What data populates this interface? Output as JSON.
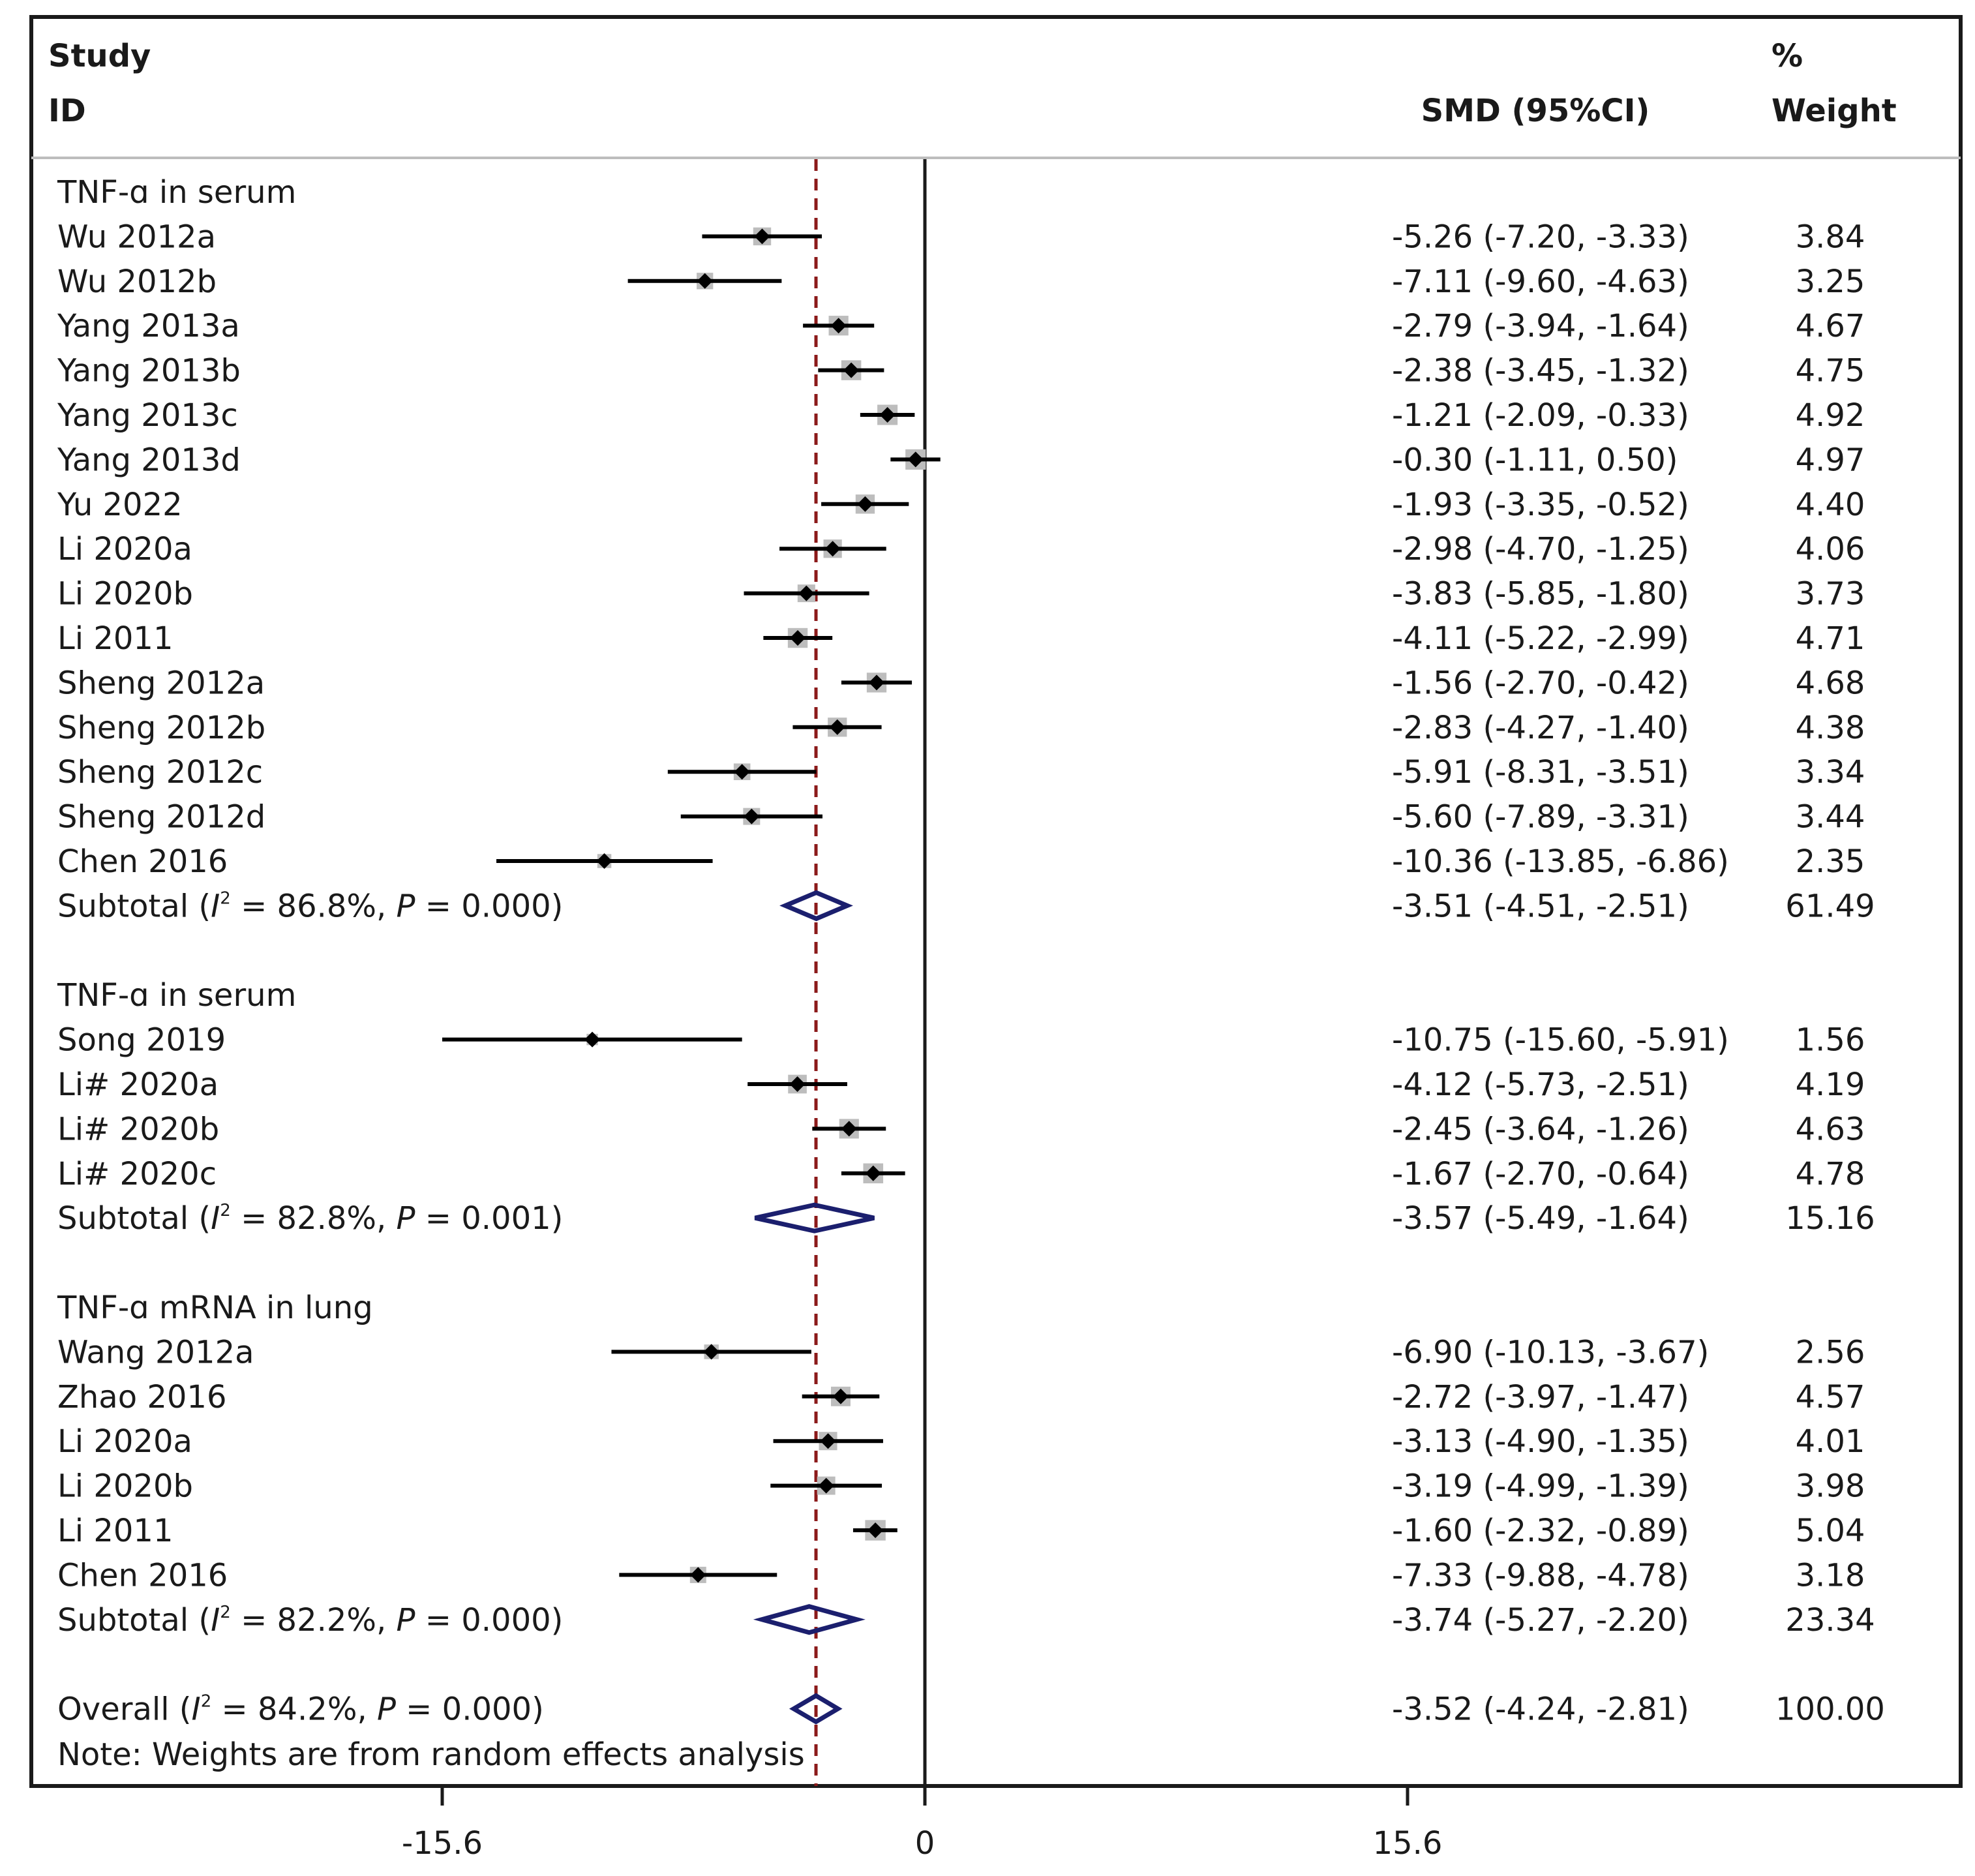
{
  "colors": {
    "box": "#bdbdbd",
    "point": "#000000",
    "diamond": "#1b1f6e",
    "overall_line": "#8b1a1a",
    "frame": "#1a1a1a"
  },
  "header": {
    "study": "Study",
    "id": "ID",
    "effect": "SMD (95%CI)",
    "pct": "%",
    "weight": "Weight"
  },
  "footnote": "Note: Weights are from random effects analysis",
  "chart_data": {
    "type": "forest",
    "x_ticks": [
      "-15.6",
      "0",
      "15.6"
    ],
    "xlim": [
      -28.8,
      33.2
    ],
    "null_line": 0,
    "overall_line": -3.52,
    "rows": [
      {
        "kind": "group",
        "label": "TNF-ɑ in serum"
      },
      {
        "kind": "study",
        "label": "Wu 2012a",
        "est": -5.26,
        "lo": -7.2,
        "hi": -3.33,
        "ci_text": "-5.26 (-7.20, -3.33)",
        "weight": 3.84,
        "weight_text": "3.84"
      },
      {
        "kind": "study",
        "label": "Wu 2012b",
        "est": -7.11,
        "lo": -9.6,
        "hi": -4.63,
        "ci_text": "-7.11 (-9.60, -4.63)",
        "weight": 3.25,
        "weight_text": "3.25"
      },
      {
        "kind": "study",
        "label": "Yang 2013a",
        "est": -2.79,
        "lo": -3.94,
        "hi": -1.64,
        "ci_text": "-2.79 (-3.94, -1.64)",
        "weight": 4.67,
        "weight_text": "4.67"
      },
      {
        "kind": "study",
        "label": "Yang 2013b",
        "est": -2.38,
        "lo": -3.45,
        "hi": -1.32,
        "ci_text": "-2.38 (-3.45, -1.32)",
        "weight": 4.75,
        "weight_text": "4.75"
      },
      {
        "kind": "study",
        "label": "Yang 2013c",
        "est": -1.21,
        "lo": -2.09,
        "hi": -0.33,
        "ci_text": "-1.21 (-2.09, -0.33)",
        "weight": 4.92,
        "weight_text": "4.92"
      },
      {
        "kind": "study",
        "label": "Yang 2013d",
        "est": -0.3,
        "lo": -1.11,
        "hi": 0.5,
        "ci_text": "-0.30 (-1.11, 0.50)",
        "weight": 4.97,
        "weight_text": "4.97"
      },
      {
        "kind": "study",
        "label": "Yu 2022",
        "est": -1.93,
        "lo": -3.35,
        "hi": -0.52,
        "ci_text": "-1.93 (-3.35, -0.52)",
        "weight": 4.4,
        "weight_text": "4.40"
      },
      {
        "kind": "study",
        "label": "Li 2020a",
        "est": -2.98,
        "lo": -4.7,
        "hi": -1.25,
        "ci_text": "-2.98 (-4.70, -1.25)",
        "weight": 4.06,
        "weight_text": "4.06"
      },
      {
        "kind": "study",
        "label": "Li 2020b",
        "est": -3.83,
        "lo": -5.85,
        "hi": -1.8,
        "ci_text": "-3.83 (-5.85, -1.80)",
        "weight": 3.73,
        "weight_text": "3.73"
      },
      {
        "kind": "study",
        "label": "Li 2011",
        "est": -4.11,
        "lo": -5.22,
        "hi": -2.99,
        "ci_text": "-4.11 (-5.22, -2.99)",
        "weight": 4.71,
        "weight_text": "4.71"
      },
      {
        "kind": "study",
        "label": "Sheng 2012a",
        "est": -1.56,
        "lo": -2.7,
        "hi": -0.42,
        "ci_text": "-1.56 (-2.70, -0.42)",
        "weight": 4.68,
        "weight_text": "4.68"
      },
      {
        "kind": "study",
        "label": "Sheng 2012b",
        "est": -2.83,
        "lo": -4.27,
        "hi": -1.4,
        "ci_text": "-2.83 (-4.27, -1.40)",
        "weight": 4.38,
        "weight_text": "4.38"
      },
      {
        "kind": "study",
        "label": "Sheng 2012c",
        "est": -5.91,
        "lo": -8.31,
        "hi": -3.51,
        "ci_text": "-5.91 (-8.31, -3.51)",
        "weight": 3.34,
        "weight_text": "3.34"
      },
      {
        "kind": "study",
        "label": "Sheng 2012d",
        "est": -5.6,
        "lo": -7.89,
        "hi": -3.31,
        "ci_text": "-5.60 (-7.89, -3.31)",
        "weight": 3.44,
        "weight_text": "3.44"
      },
      {
        "kind": "study",
        "label": "Chen 2016",
        "est": -10.36,
        "lo": -13.85,
        "hi": -6.86,
        "ci_text": "-10.36 (-13.85, -6.86)",
        "weight": 2.35,
        "weight_text": "2.35"
      },
      {
        "kind": "subtotal",
        "prefix": "Subtotal (",
        "i2sym": "I",
        "i2sup": "2",
        "mid": " = 86.8%, ",
        "psym": "P",
        "suffix": " = 0.000)",
        "est": -3.51,
        "lo": -4.51,
        "hi": -2.51,
        "ci_text": "-3.51 (-4.51, -2.51)",
        "weight_text": "61.49"
      },
      {
        "kind": "blank"
      },
      {
        "kind": "group",
        "label": "TNF-ɑ in serum"
      },
      {
        "kind": "study",
        "label": "Song 2019",
        "est": -10.75,
        "lo": -15.6,
        "hi": -5.91,
        "ci_text": "-10.75 (-15.60, -5.91)",
        "weight": 1.56,
        "weight_text": "1.56"
      },
      {
        "kind": "study",
        "label": "Li# 2020a",
        "est": -4.12,
        "lo": -5.73,
        "hi": -2.51,
        "ci_text": "-4.12 (-5.73, -2.51)",
        "weight": 4.19,
        "weight_text": "4.19"
      },
      {
        "kind": "study",
        "label": "Li# 2020b",
        "est": -2.45,
        "lo": -3.64,
        "hi": -1.26,
        "ci_text": "-2.45 (-3.64, -1.26)",
        "weight": 4.63,
        "weight_text": "4.63"
      },
      {
        "kind": "study",
        "label": "Li# 2020c",
        "est": -1.67,
        "lo": -2.7,
        "hi": -0.64,
        "ci_text": "-1.67 (-2.70, -0.64)",
        "weight": 4.78,
        "weight_text": "4.78"
      },
      {
        "kind": "subtotal",
        "prefix": "Subtotal (",
        "i2sym": "I",
        "i2sup": "2",
        "mid": " = 82.8%, ",
        "psym": "P",
        "suffix": " = 0.001)",
        "est": -3.57,
        "lo": -5.49,
        "hi": -1.64,
        "ci_text": "-3.57 (-5.49, -1.64)",
        "weight_text": "15.16"
      },
      {
        "kind": "blank"
      },
      {
        "kind": "group",
        "label": "TNF-ɑ mRNA in lung"
      },
      {
        "kind": "study",
        "label": "Wang 2012a",
        "est": -6.9,
        "lo": -10.13,
        "hi": -3.67,
        "ci_text": "-6.90 (-10.13, -3.67)",
        "weight": 2.56,
        "weight_text": "2.56"
      },
      {
        "kind": "study",
        "label": "Zhao 2016",
        "est": -2.72,
        "lo": -3.97,
        "hi": -1.47,
        "ci_text": "-2.72 (-3.97, -1.47)",
        "weight": 4.57,
        "weight_text": "4.57"
      },
      {
        "kind": "study",
        "label": "Li 2020a",
        "est": -3.13,
        "lo": -4.9,
        "hi": -1.35,
        "ci_text": "-3.13 (-4.90, -1.35)",
        "weight": 4.01,
        "weight_text": "4.01"
      },
      {
        "kind": "study",
        "label": "Li 2020b",
        "est": -3.19,
        "lo": -4.99,
        "hi": -1.39,
        "ci_text": "-3.19 (-4.99, -1.39)",
        "weight": 3.98,
        "weight_text": "3.98"
      },
      {
        "kind": "study",
        "label": "Li 2011",
        "est": -1.6,
        "lo": -2.32,
        "hi": -0.89,
        "ci_text": "-1.60 (-2.32, -0.89)",
        "weight": 5.04,
        "weight_text": "5.04"
      },
      {
        "kind": "study",
        "label": "Chen 2016",
        "est": -7.33,
        "lo": -9.88,
        "hi": -4.78,
        "ci_text": "-7.33 (-9.88, -4.78)",
        "weight": 3.18,
        "weight_text": "3.18"
      },
      {
        "kind": "subtotal",
        "prefix": "Subtotal (",
        "i2sym": "I",
        "i2sup": "2",
        "mid": " = 82.2%, ",
        "psym": "P",
        "suffix": " = 0.000)",
        "est": -3.74,
        "lo": -5.27,
        "hi": -2.2,
        "ci_text": "-3.74 (-5.27, -2.20)",
        "weight_text": "23.34"
      },
      {
        "kind": "blank"
      },
      {
        "kind": "overall",
        "prefix": "Overall (",
        "i2sym": "I",
        "i2sup": "2",
        "mid": " = 84.2%, ",
        "psym": "P",
        "suffix": " = 0.000)",
        "est": -3.52,
        "lo": -4.24,
        "hi": -2.81,
        "ci_text": "-3.52 (-4.24, -2.81)",
        "weight_text": "100.00"
      }
    ]
  }
}
